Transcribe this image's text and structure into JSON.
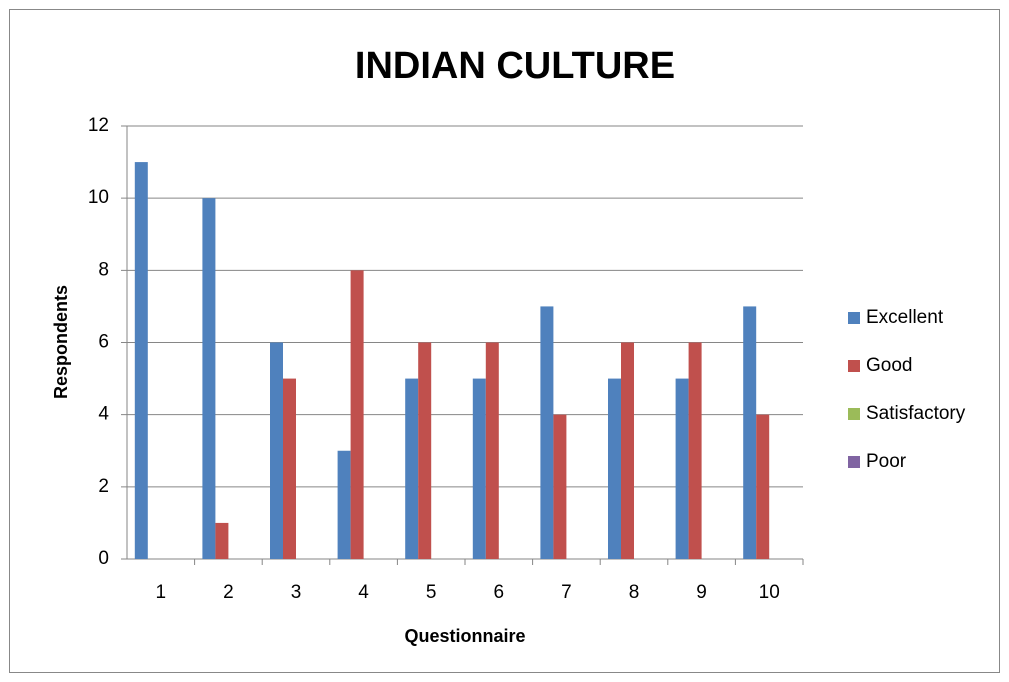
{
  "chart_data": {
    "type": "bar",
    "title": "INDIAN CULTURE",
    "x_label": "Questionnaire",
    "y_label": "Respondents",
    "categories": [
      "1",
      "2",
      "3",
      "4",
      "5",
      "6",
      "7",
      "8",
      "9",
      "10"
    ],
    "series": [
      {
        "name": "Excellent",
        "color": "#4f81bd",
        "values": [
          11,
          10,
          6,
          3,
          5,
          5,
          7,
          5,
          5,
          7
        ]
      },
      {
        "name": "Good",
        "color": "#c0504d",
        "values": [
          0,
          1,
          5,
          8,
          6,
          6,
          4,
          6,
          6,
          4
        ]
      },
      {
        "name": "Satisfactory",
        "color": "#9bbb59",
        "values": [
          0,
          0,
          0,
          0,
          0,
          0,
          0,
          0,
          0,
          0
        ]
      },
      {
        "name": "Poor",
        "color": "#8064a2",
        "values": [
          0,
          0,
          0,
          0,
          0,
          0,
          0,
          0,
          0,
          0
        ]
      }
    ],
    "ylim": [
      0,
      12
    ],
    "yticks": [
      0,
      2,
      4,
      6,
      8,
      10,
      12
    ],
    "grid": true,
    "legend": "right"
  }
}
